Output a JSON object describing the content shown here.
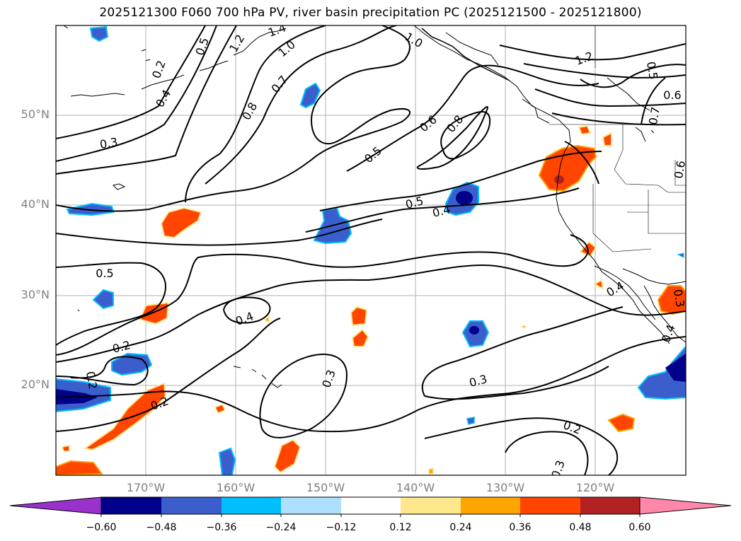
{
  "title": "2025121300 F060 700 hPa PV, river basin precipitation PC (2025121500 - 2025121800)",
  "lat_labels": [
    "50°N",
    "40°N",
    "30°N",
    "20°N"
  ],
  "lon_labels": [
    "170°W",
    "160°W",
    "150°W",
    "140°W",
    "130°W",
    "120°W"
  ],
  "colorbar": {
    "ticks": [
      "−0.60",
      "−0.48",
      "−0.36",
      "−0.24",
      "−0.12",
      "0.12",
      "0.24",
      "0.36",
      "0.48",
      "0.60"
    ],
    "colors": [
      "#9932CC",
      "#00008B",
      "#3A5FCD",
      "#00BFFF",
      "#ADDFFF",
      "#FFFFFF",
      "#FFE88C",
      "#FFA500",
      "#FF4500",
      "#B22222",
      "#FF88AA"
    ]
  },
  "contour_labels": [
    "0.5",
    "1.4",
    "1.2",
    "1.0",
    "0.2",
    "0.4",
    "0.7",
    "0.8",
    "0.3",
    "1.0",
    "1.2",
    "0.5",
    "0.6",
    "0.7",
    "0.6",
    "0.8",
    "0.5",
    "0.6",
    "0.5",
    "0.4",
    "0.5",
    "0.4",
    "0.2",
    "0.2",
    "0.4",
    "0.3",
    "0.3",
    "0.2",
    "0.3",
    "0.2",
    "0.4",
    "0.3",
    "0.2"
  ]
}
